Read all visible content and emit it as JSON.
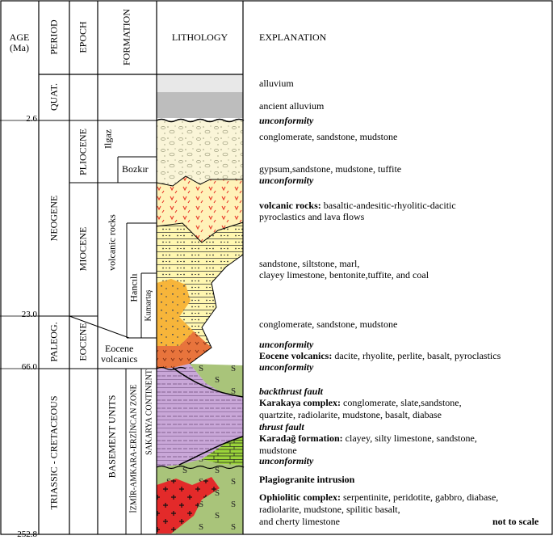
{
  "headers": {
    "age": "AGE",
    "age_unit": "(Ma)",
    "period": "PERIOD",
    "epoch": "EPOCH",
    "formation": "FORMATION",
    "lithology": "LITHOLOGY",
    "explanation": "EXPLANATION"
  },
  "ages": [
    "2.6",
    "23.0",
    "66.0",
    "252.8"
  ],
  "periods": [
    "QUAT.",
    "NEOGENE",
    "PALEOG.",
    "TRIASSIC - CRETACEOUS"
  ],
  "epochs": [
    "PLIOCENE",
    "MIOCENE",
    "EOCENE"
  ],
  "formations": {
    "ilgaz": "Ilgaz",
    "bozkir": "Bozkır",
    "volcanic_rocks": "volcanic rocks",
    "hancili": "Hancılı",
    "kumartas": "Kumartaş",
    "eocene_volcanics_1": "Eocene",
    "eocene_volcanics_2": "volcanics",
    "basement_units": "BASEMENT UNITS",
    "sakarya": "SAKARYA CONTINENT",
    "izmir": "İZMİR-AMKARA-ERZİNCAN ZONE"
  },
  "explanations": {
    "alluvium": "alluvium",
    "ancient_alluvium": "ancient alluvium",
    "unconformity": "unconformity",
    "conglomerate_1": "conglomerate, sandstone, mudstone",
    "gypsum": "gypsum,sandstone, mudstone, tuffite",
    "volcanic_rocks_bold": "volcanic rocks:",
    "volcanic_rocks_text": "basaltic-andesitic-rhyolitic-dacitic",
    "volcanic_rocks_text2": "pyroclastics and lava flows",
    "sandstone_1": "sandstone, siltstone, marl,",
    "sandstone_2": "clayey limestone, bentonite,tuffite, and coal",
    "conglomerate_2": "conglomerate, sandstone, mudstone",
    "eocene_bold": "Eocene volcanics:",
    "eocene_text": "dacite, rhyolite, perlite, basalt, pyroclastics",
    "backthrust": "backthrust fault",
    "karakaya_bold": "Karakaya complex:",
    "karakaya_text": "conglomerate, slate,sandstone,",
    "karakaya_text2": "quartzite,  radiolarite, mudstone, basalt, diabase",
    "thrust": "thrust fault",
    "karadag_bold": "Karadağ formation:",
    "karadag_text": "clayey, silty limestone, sandstone,",
    "karadag_text2": "mudstone",
    "plagiogranite": "Plagiogranite intrusion",
    "ophiolitic_bold": "Ophiolitic complex:",
    "ophiolitic_text": "serpentinite, peridotite, gabbro, diabase,",
    "ophiolitic_text2": "radiolarite, mudstone, spilitic basalt,",
    "ophiolitic_text3": "and cherty limestone",
    "not_to_scale": "not to scale"
  },
  "colors": {
    "alluvium": "#e8e8e8",
    "ancient_alluvium": "#bdbdbd",
    "conglomerate": "#faf5d8",
    "volcanic": "#fff2b8",
    "volcanic_red": "#e8392a",
    "sandstone": "#fff7b0",
    "orange": "#f7b53a",
    "eocene": "#e8743c",
    "karakaya": "#c9a7d8",
    "karadag": "#9bd43a",
    "ophiolite": "#a9c47a",
    "plagiogranite": "#e32a2a",
    "teal": "#4bb8c9"
  }
}
